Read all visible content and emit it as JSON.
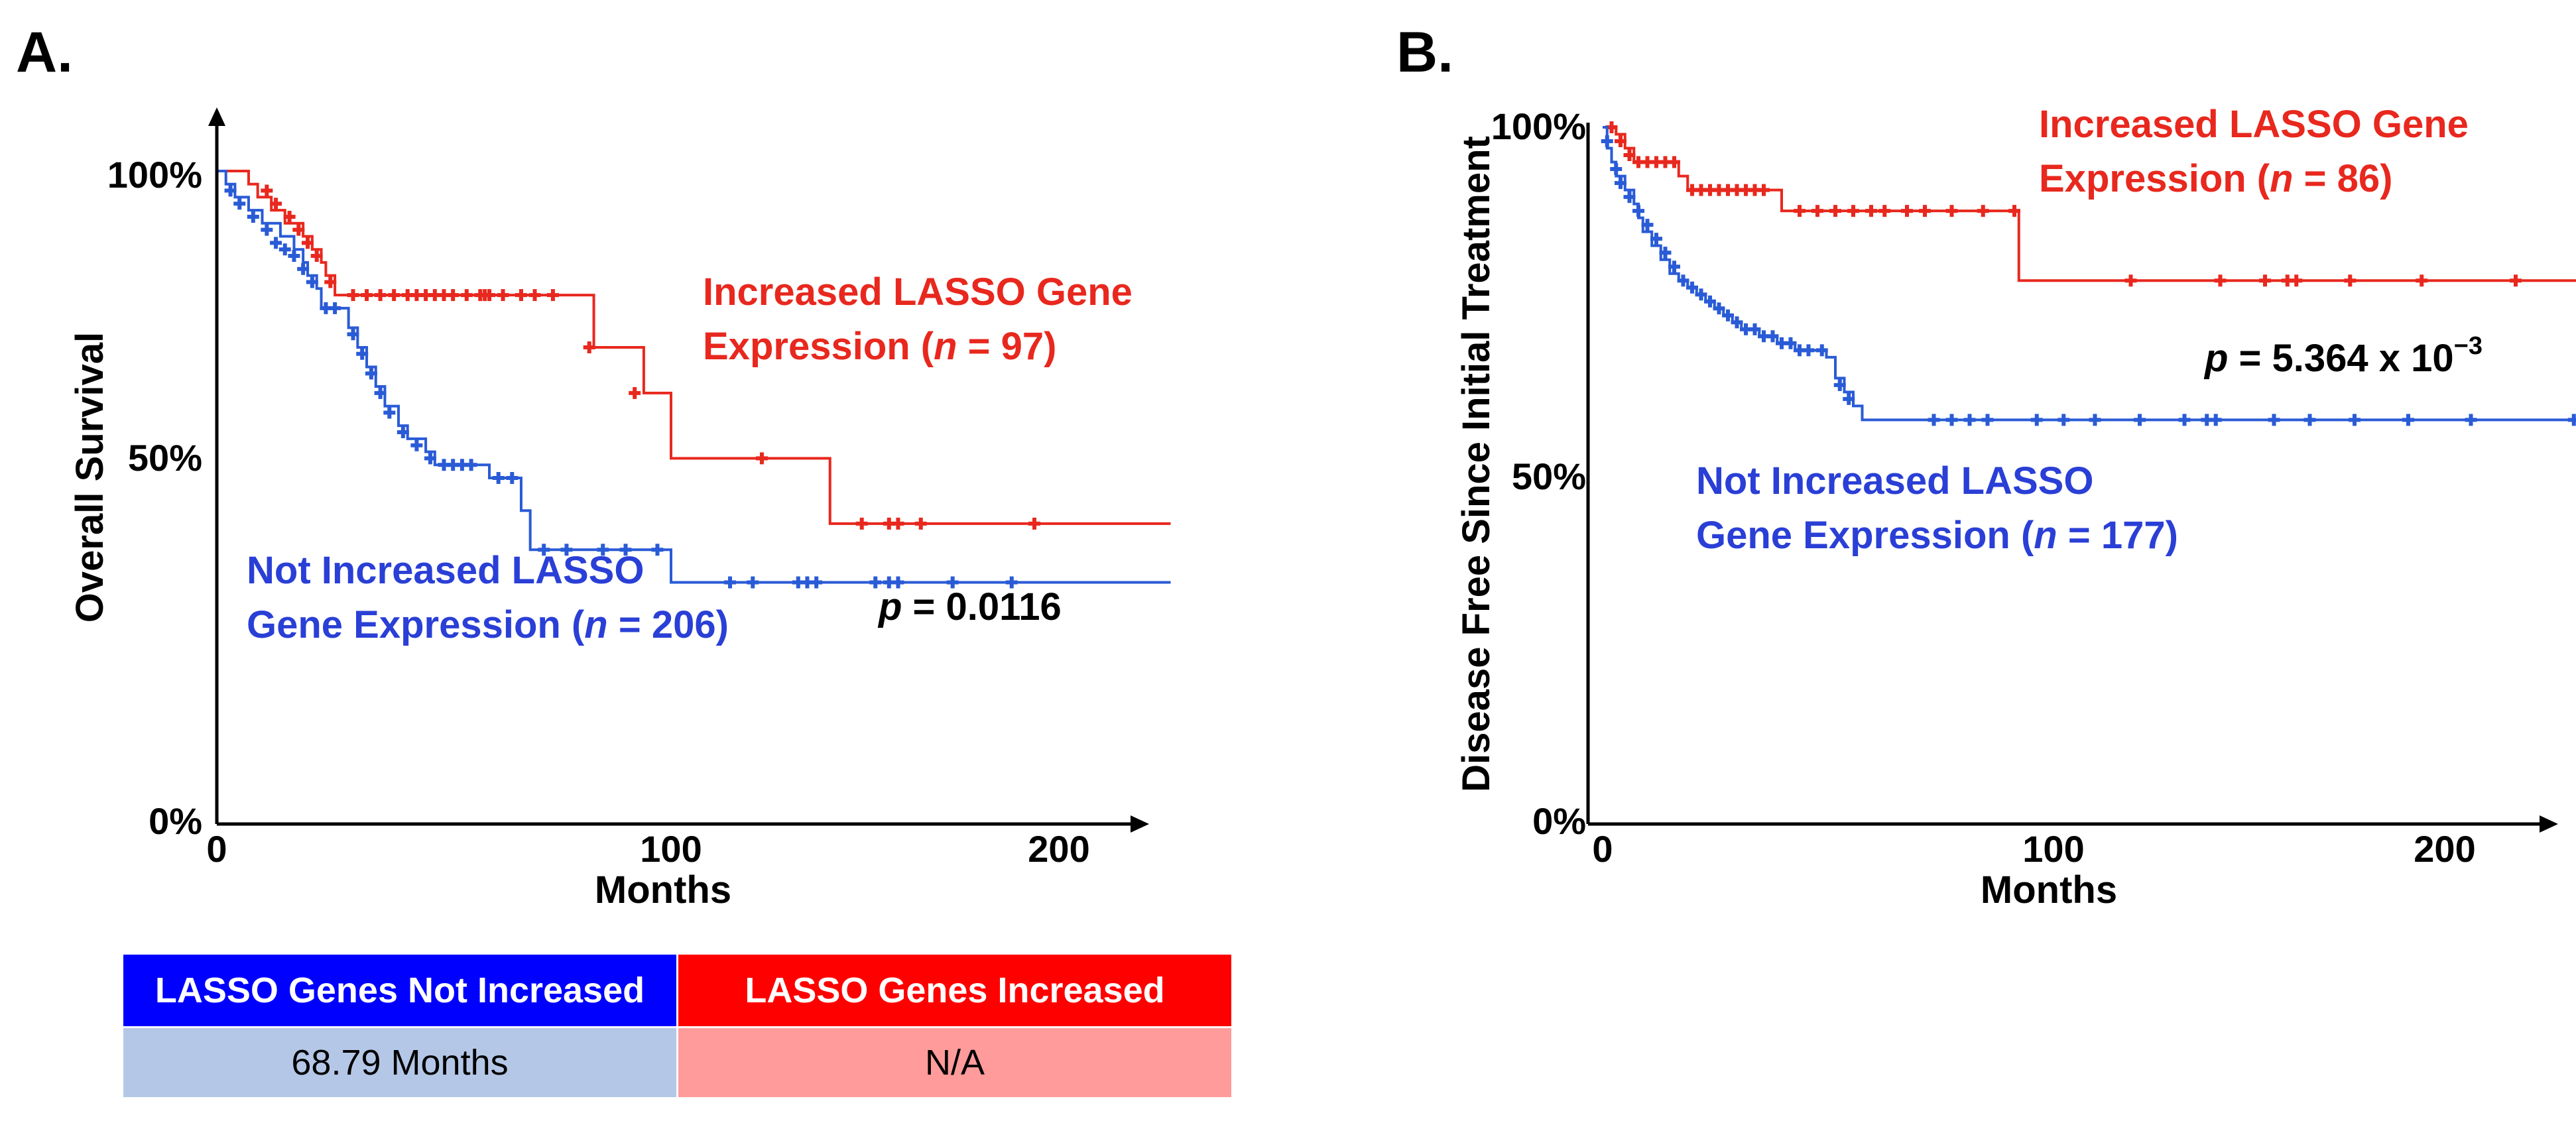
{
  "panels": {
    "a": {
      "label": "A."
    },
    "b": {
      "label": "B."
    }
  },
  "colors": {
    "increased": "#e8281e",
    "not_increased": "#2a5bd6",
    "table_blue_header": "#0000ff",
    "table_red_header": "#ff0000",
    "table_blue_cell": "#b4c7e7",
    "table_red_cell": "#ff9b9b"
  },
  "chart_data": [
    {
      "type": "line",
      "subtype": "kaplan-meier",
      "panel": "A.",
      "title": "",
      "xlabel": "Months",
      "ylabel": "Overall Survival",
      "xlim": [
        0,
        210
      ],
      "ylim": [
        0,
        100
      ],
      "x_ticks": [
        {
          "value": 0,
          "label": "0"
        },
        {
          "value": 100,
          "label": "100"
        },
        {
          "value": 200,
          "label": "200"
        }
      ],
      "y_ticks": [
        {
          "value": 0,
          "label": "0%"
        },
        {
          "value": 50,
          "label": "50%"
        },
        {
          "value": 100,
          "label": "100%"
        }
      ],
      "series": [
        {
          "name": "Increased",
          "color": "#e8281e",
          "steps": [
            [
              0,
              100
            ],
            [
              7,
              98
            ],
            [
              9,
              96
            ],
            [
              12,
              94
            ],
            [
              15,
              92
            ],
            [
              19,
              90
            ],
            [
              21,
              88
            ],
            [
              23,
              86
            ],
            [
              24,
              84
            ],
            [
              26,
              81
            ],
            [
              83,
              81
            ],
            [
              83,
              73
            ],
            [
              94,
              73
            ],
            [
              94,
              66
            ],
            [
              100,
              66
            ],
            [
              100,
              56
            ],
            [
              135,
              56
            ],
            [
              135,
              46
            ],
            [
              210,
              46
            ]
          ],
          "censored": [
            [
              11,
              97
            ],
            [
              13,
              95
            ],
            [
              16,
              93
            ],
            [
              18,
              91
            ],
            [
              20,
              89
            ],
            [
              22,
              87
            ],
            [
              25,
              83
            ],
            [
              30,
              81
            ],
            [
              33,
              81
            ],
            [
              36,
              81
            ],
            [
              39,
              81
            ],
            [
              42,
              81
            ],
            [
              44,
              81
            ],
            [
              46,
              81
            ],
            [
              48,
              81
            ],
            [
              50,
              81
            ],
            [
              52,
              81
            ],
            [
              55,
              81
            ],
            [
              58,
              81
            ],
            [
              59,
              81
            ],
            [
              60,
              81
            ],
            [
              63,
              81
            ],
            [
              67,
              81
            ],
            [
              70,
              81
            ],
            [
              74,
              81
            ],
            [
              82,
              73
            ],
            [
              92,
              66
            ],
            [
              120,
              56
            ],
            [
              142,
              46
            ],
            [
              148,
              46
            ],
            [
              150,
              46
            ],
            [
              155,
              46
            ],
            [
              180,
              46
            ]
          ]
        },
        {
          "name": "Not Increased",
          "color": "#2a5bd6",
          "steps": [
            [
              0,
              100
            ],
            [
              2,
              98
            ],
            [
              4,
              96
            ],
            [
              7,
              94
            ],
            [
              10,
              92
            ],
            [
              14,
              90
            ],
            [
              17,
              88
            ],
            [
              19,
              86
            ],
            [
              20,
              84
            ],
            [
              22,
              82
            ],
            [
              23,
              79
            ],
            [
              28,
              79
            ],
            [
              29,
              76
            ],
            [
              31,
              73
            ],
            [
              33,
              70
            ],
            [
              35,
              67
            ],
            [
              37,
              64
            ],
            [
              40,
              61
            ],
            [
              42,
              59
            ],
            [
              46,
              57
            ],
            [
              48,
              55
            ],
            [
              58,
              55
            ],
            [
              60,
              53
            ],
            [
              67,
              53
            ],
            [
              67,
              48
            ],
            [
              69,
              48
            ],
            [
              69,
              42
            ],
            [
              100,
              42
            ],
            [
              100,
              37
            ],
            [
              210,
              37
            ]
          ],
          "censored": [
            [
              3,
              97
            ],
            [
              5,
              95
            ],
            [
              8,
              93
            ],
            [
              11,
              91
            ],
            [
              13,
              89
            ],
            [
              15,
              88
            ],
            [
              17,
              87
            ],
            [
              19,
              85
            ],
            [
              21,
              83
            ],
            [
              24,
              79
            ],
            [
              26,
              79
            ],
            [
              30,
              75
            ],
            [
              32,
              72
            ],
            [
              34,
              69
            ],
            [
              36,
              66
            ],
            [
              38,
              63
            ],
            [
              41,
              60
            ],
            [
              44,
              58
            ],
            [
              47,
              56
            ],
            [
              50,
              55
            ],
            [
              52,
              55
            ],
            [
              54,
              55
            ],
            [
              56,
              55
            ],
            [
              62,
              53
            ],
            [
              65,
              53
            ],
            [
              72,
              42
            ],
            [
              77,
              42
            ],
            [
              85,
              42
            ],
            [
              90,
              42
            ],
            [
              97,
              42
            ],
            [
              113,
              37
            ],
            [
              118,
              37
            ],
            [
              128,
              37
            ],
            [
              130,
              37
            ],
            [
              132,
              37
            ],
            [
              145,
              37
            ],
            [
              148,
              37
            ],
            [
              150,
              37
            ],
            [
              162,
              37
            ],
            [
              175,
              37
            ]
          ]
        }
      ],
      "annotations": {
        "increased_line1": "Increased LASSO Gene",
        "increased_line2_prefix": "Expression (",
        "increased_n": "n",
        "increased_line2_suffix": " = 97)",
        "not_increased_line1": "Not Increased LASSO",
        "not_increased_line2_prefix": "Gene Expression (",
        "not_increased_n": "n",
        "not_increased_line2_suffix": " = 206)",
        "p_label": "p",
        "p_value": " = 0.0116"
      }
    },
    {
      "type": "line",
      "subtype": "kaplan-meier",
      "panel": "B.",
      "title": "",
      "xlabel": "Months",
      "ylabel": "Disease Free Since Initial Treatment",
      "xlim": [
        0,
        220
      ],
      "ylim": [
        0,
        100
      ],
      "x_ticks": [
        {
          "value": 0,
          "label": "0"
        },
        {
          "value": 100,
          "label": "100"
        },
        {
          "value": 200,
          "label": "200"
        }
      ],
      "y_ticks": [
        {
          "value": 0,
          "label": "0%"
        },
        {
          "value": 50,
          "label": "50%"
        },
        {
          "value": 100,
          "label": "100%"
        }
      ],
      "series": [
        {
          "name": "Increased",
          "color": "#e8281e",
          "steps": [
            [
              0,
              100
            ],
            [
              3,
              99
            ],
            [
              5,
              97
            ],
            [
              7,
              95
            ],
            [
              17,
              95
            ],
            [
              17,
              93
            ],
            [
              19,
              91
            ],
            [
              40,
              91
            ],
            [
              40,
              88
            ],
            [
              93,
              88
            ],
            [
              93,
              78
            ],
            [
              220,
              78
            ]
          ],
          "censored": [
            [
              2,
              100
            ],
            [
              4,
              98
            ],
            [
              6,
              96
            ],
            [
              8,
              95
            ],
            [
              10,
              95
            ],
            [
              12,
              95
            ],
            [
              14,
              95
            ],
            [
              16,
              95
            ],
            [
              20,
              91
            ],
            [
              22,
              91
            ],
            [
              24,
              91
            ],
            [
              26,
              91
            ],
            [
              28,
              91
            ],
            [
              30,
              91
            ],
            [
              32,
              91
            ],
            [
              34,
              91
            ],
            [
              36,
              91
            ],
            [
              44,
              88
            ],
            [
              48,
              88
            ],
            [
              52,
              88
            ],
            [
              56,
              88
            ],
            [
              60,
              88
            ],
            [
              63,
              88
            ],
            [
              68,
              88
            ],
            [
              72,
              88
            ],
            [
              78,
              88
            ],
            [
              85,
              88
            ],
            [
              92,
              88
            ],
            [
              118,
              78
            ],
            [
              138,
              78
            ],
            [
              148,
              78
            ],
            [
              153,
              78
            ],
            [
              155,
              78
            ],
            [
              167,
              78
            ],
            [
              183,
              78
            ],
            [
              204,
              78
            ]
          ]
        },
        {
          "name": "Not Increased",
          "color": "#2a5bd6",
          "steps": [
            [
              0,
              100
            ],
            [
              1,
              97
            ],
            [
              2,
              95
            ],
            [
              3,
              93
            ],
            [
              5,
              91
            ],
            [
              7,
              89
            ],
            [
              8,
              87
            ],
            [
              9,
              85
            ],
            [
              11,
              83
            ],
            [
              13,
              81
            ],
            [
              15,
              79
            ],
            [
              17,
              78
            ],
            [
              19,
              77
            ],
            [
              21,
              76
            ],
            [
              23,
              75
            ],
            [
              25,
              74
            ],
            [
              27,
              73
            ],
            [
              29,
              72
            ],
            [
              31,
              71
            ],
            [
              35,
              70
            ],
            [
              39,
              69
            ],
            [
              43,
              68
            ],
            [
              48,
              68
            ],
            [
              50,
              67
            ],
            [
              52,
              64
            ],
            [
              54,
              62
            ],
            [
              56,
              60
            ],
            [
              58,
              58
            ],
            [
              220,
              58
            ]
          ],
          "censored": [
            [
              1,
              98
            ],
            [
              3,
              94
            ],
            [
              4,
              92
            ],
            [
              6,
              90
            ],
            [
              8,
              88
            ],
            [
              10,
              86
            ],
            [
              12,
              84
            ],
            [
              14,
              82
            ],
            [
              16,
              80
            ],
            [
              18,
              78
            ],
            [
              20,
              77
            ],
            [
              22,
              76
            ],
            [
              24,
              75
            ],
            [
              26,
              74
            ],
            [
              28,
              73
            ],
            [
              30,
              72
            ],
            [
              32,
              71
            ],
            [
              34,
              71
            ],
            [
              36,
              70
            ],
            [
              38,
              70
            ],
            [
              40,
              69
            ],
            [
              42,
              69
            ],
            [
              44,
              68
            ],
            [
              46,
              68
            ],
            [
              49,
              68
            ],
            [
              53,
              63
            ],
            [
              55,
              61
            ],
            [
              74,
              58
            ],
            [
              78,
              58
            ],
            [
              82,
              58
            ],
            [
              86,
              58
            ],
            [
              97,
              58
            ],
            [
              103,
              58
            ],
            [
              110,
              58
            ],
            [
              120,
              58
            ],
            [
              130,
              58
            ],
            [
              135,
              58
            ],
            [
              137,
              58
            ],
            [
              150,
              58
            ],
            [
              158,
              58
            ],
            [
              168,
              58
            ],
            [
              180,
              58
            ],
            [
              194,
              58
            ],
            [
              217,
              58
            ]
          ]
        }
      ],
      "annotations": {
        "increased_line1": "Increased LASSO Gene",
        "increased_line2_prefix": "Expression (",
        "increased_n": "n",
        "increased_line2_suffix": " = 86)",
        "not_increased_line1": "Not Increased LASSO",
        "not_increased_line2_prefix": "Gene Expression (",
        "not_increased_n": "n",
        "not_increased_line2_suffix": " = 177)",
        "p_label": "p",
        "p_value": " = 5.364 x 10",
        "p_exponent": "−3"
      }
    }
  ],
  "median_table": {
    "headers": [
      "LASSO Genes Not Increased",
      "LASSO Genes Increased"
    ],
    "values": [
      "68.79 Months",
      "N/A"
    ]
  }
}
